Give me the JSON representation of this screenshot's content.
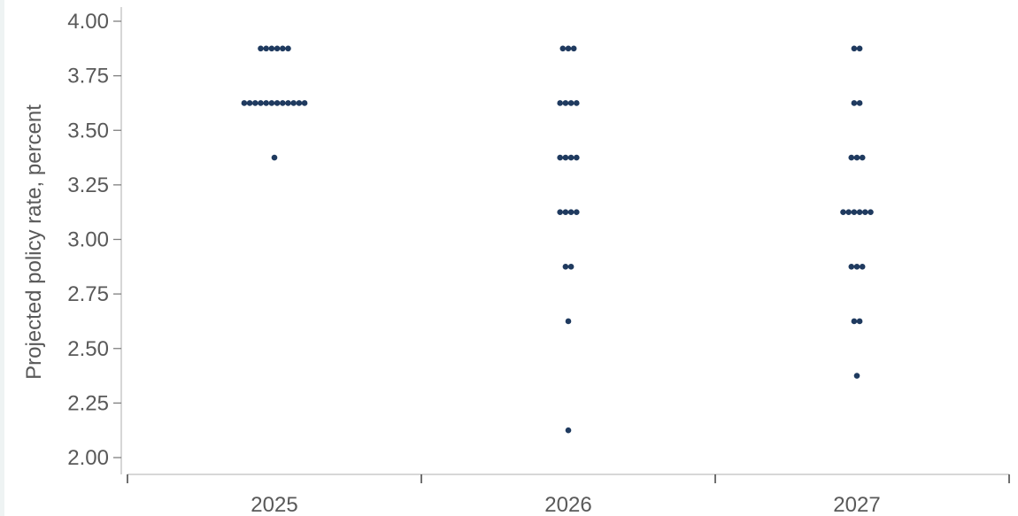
{
  "chart_data": {
    "type": "scatter",
    "ylabel": "Projected policy rate, percent",
    "xlabel": "",
    "ylim": [
      2.0,
      4.0
    ],
    "yticks": [
      "2.00",
      "2.25",
      "2.50",
      "2.75",
      "3.00",
      "3.25",
      "3.50",
      "3.75",
      "4.00"
    ],
    "categories": [
      "2025",
      "2026",
      "2027"
    ],
    "grid": false,
    "dot_color": "#1f3a5f",
    "axis_color": "#bfbfbf",
    "series": [
      {
        "category": "2025",
        "points": [
          {
            "y": 3.875,
            "count": 6
          },
          {
            "y": 3.625,
            "count": 12
          },
          {
            "y": 3.375,
            "count": 1
          }
        ]
      },
      {
        "category": "2026",
        "points": [
          {
            "y": 3.875,
            "count": 3
          },
          {
            "y": 3.625,
            "count": 4
          },
          {
            "y": 3.375,
            "count": 4
          },
          {
            "y": 3.125,
            "count": 4
          },
          {
            "y": 2.875,
            "count": 2
          },
          {
            "y": 2.625,
            "count": 1
          },
          {
            "y": 2.125,
            "count": 1
          }
        ]
      },
      {
        "category": "2027",
        "points": [
          {
            "y": 3.875,
            "count": 2
          },
          {
            "y": 3.625,
            "count": 2
          },
          {
            "y": 3.375,
            "count": 3
          },
          {
            "y": 3.125,
            "count": 6
          },
          {
            "y": 2.875,
            "count": 3
          },
          {
            "y": 2.625,
            "count": 2
          },
          {
            "y": 2.375,
            "count": 1
          }
        ]
      }
    ]
  }
}
